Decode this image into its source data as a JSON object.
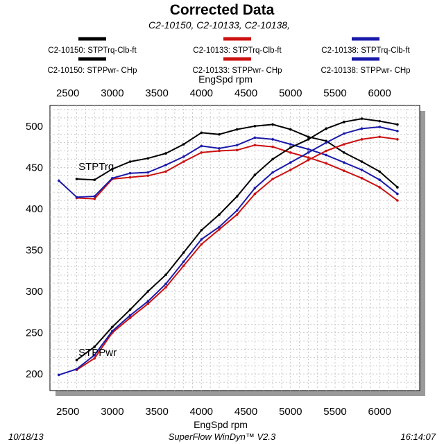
{
  "header": {
    "title": "Corrected Data",
    "subtitle": "C2-10150, C2-10133, C2-10138,"
  },
  "footer": {
    "date": "10/18/13",
    "software": "SuperFlow WinDyn™ V2.3",
    "time": "16:14:07"
  },
  "chart_data": {
    "type": "line",
    "xlabel": "EngSpd  rpm",
    "xlabel_top": "EngSpd  rpm",
    "xlim": [
      2300,
      6450
    ],
    "ylim": [
      180,
      525
    ],
    "x_ticks": [
      2500,
      3000,
      3500,
      4000,
      4500,
      5000,
      5500,
      6000
    ],
    "y_ticks": [
      200,
      250,
      300,
      350,
      400,
      450,
      500
    ],
    "grid": true,
    "legend_placement": "top",
    "annotations": [
      {
        "text": "STPTrq",
        "x": 2620,
        "y": 447
      },
      {
        "text": "STPPwr",
        "x": 2620,
        "y": 222
      }
    ],
    "legend": [
      {
        "label": "C2-10150:  STPTrq-Clb-ft",
        "color": "#000000"
      },
      {
        "label": "C2-10133:  STPTrq-Clb-ft",
        "color": "#cc1111"
      },
      {
        "label": "C2-10138:  STPTrq-Clb-ft",
        "color": "#1a1aaa"
      },
      {
        "label": "C2-10150:  STPPwr- CHp",
        "color": "#000000"
      },
      {
        "label": "C2-10133:  STPPwr- CHp",
        "color": "#cc1111"
      },
      {
        "label": "C2-10138:  STPPwr- CHp",
        "color": "#1a1aaa"
      }
    ],
    "series": [
      {
        "name": "C2-10150:  STPTrq-Clb-ft",
        "color": "#000000",
        "x": [
          2600,
          2800,
          3000,
          3200,
          3400,
          3600,
          3800,
          4000,
          4200,
          4400,
          4600,
          4800,
          5000,
          5200,
          5400,
          5600,
          5800,
          6000,
          6200
        ],
        "y": [
          436,
          435,
          448,
          457,
          461,
          467,
          478,
          492,
          490,
          496,
          500,
          502,
          496,
          487,
          482,
          468,
          457,
          445,
          426
        ]
      },
      {
        "name": "C2-10133:  STPTrq-Clb-ft",
        "color": "#cc1111",
        "x": [
          2600,
          2800,
          3000,
          3200,
          3400,
          3600,
          3800,
          4000,
          4200,
          4400,
          4600,
          4800,
          5000,
          5200,
          5400,
          5600,
          5800,
          6000,
          6200
        ],
        "y": [
          413,
          412,
          436,
          438,
          440,
          445,
          457,
          468,
          470,
          471,
          477,
          475,
          468,
          462,
          455,
          446,
          437,
          426,
          410
        ]
      },
      {
        "name": "C2-10138:  STPTrq-Clb-ft",
        "color": "#1a1aaa",
        "x": [
          2400,
          2600,
          2800,
          3000,
          3200,
          3400,
          3600,
          3800,
          4000,
          4200,
          4400,
          4600,
          4800,
          5000,
          5200,
          5400,
          5600,
          5800,
          6000,
          6200
        ],
        "y": [
          434,
          414,
          415,
          437,
          443,
          444,
          453,
          463,
          476,
          473,
          477,
          486,
          484,
          478,
          472,
          465,
          456,
          447,
          435,
          418
        ]
      },
      {
        "name": "C2-10150:  STPPwr- CHp",
        "color": "#000000",
        "x": [
          2600,
          2800,
          3000,
          3200,
          3400,
          3600,
          3800,
          4000,
          4200,
          4400,
          4600,
          4800,
          5000,
          5200,
          5400,
          5600,
          5800,
          6000,
          6200
        ],
        "y": [
          217,
          233,
          257,
          278,
          300,
          320,
          347,
          374,
          393,
          415,
          441,
          460,
          474,
          484,
          497,
          505,
          509,
          506,
          502
        ]
      },
      {
        "name": "C2-10133:  STPPwr- CHp",
        "color": "#cc1111",
        "x": [
          2600,
          2800,
          3000,
          3200,
          3400,
          3600,
          3800,
          4000,
          4200,
          4400,
          4600,
          4800,
          5000,
          5200,
          5400,
          5600,
          5800,
          6000,
          6200
        ],
        "y": [
          205,
          219,
          250,
          268,
          285,
          305,
          331,
          357,
          375,
          393,
          418,
          436,
          447,
          459,
          470,
          478,
          484,
          487,
          484
        ]
      },
      {
        "name": "C2-10138:  STPPwr- CHp",
        "color": "#1a1aaa",
        "x": [
          2400,
          2600,
          2800,
          3000,
          3200,
          3400,
          3600,
          3800,
          4000,
          4200,
          4400,
          4600,
          4800,
          5000,
          5200,
          5400,
          5600,
          5800,
          6000,
          6200
        ],
        "y": [
          199,
          206,
          223,
          252,
          271,
          288,
          309,
          336,
          363,
          378,
          398,
          425,
          444,
          456,
          468,
          480,
          491,
          497,
          499,
          494
        ]
      }
    ]
  }
}
